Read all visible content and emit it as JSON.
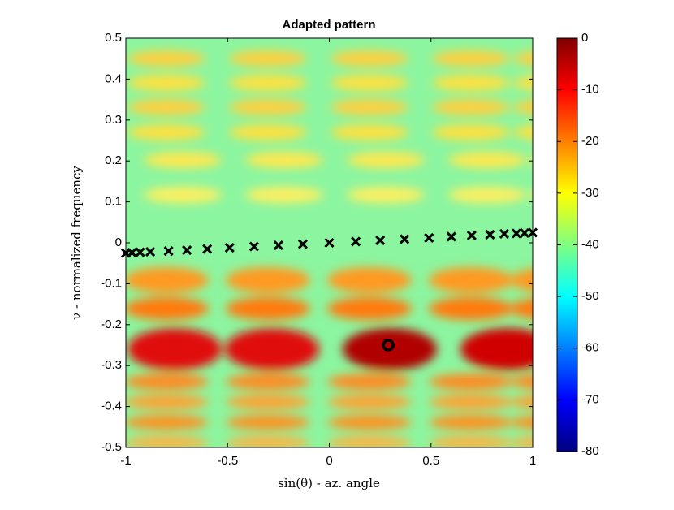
{
  "chart_data": {
    "type": "scatter",
    "title": "Adapted pattern",
    "xlabel": "sin(θ) - az. angle",
    "ylabel": "ν - normalized frequency",
    "xlim": [
      -1,
      1
    ],
    "ylim": [
      -0.5,
      0.5
    ],
    "xticks": [
      -1,
      -0.5,
      0,
      0.5,
      1
    ],
    "yticks": [
      -0.5,
      -0.4,
      -0.3,
      -0.2,
      -0.1,
      0,
      0.1,
      0.2,
      0.3,
      0.4,
      0.5
    ],
    "series": [
      {
        "marker": "x",
        "color": "#000000",
        "x": [
          -1,
          -0.97,
          -0.93,
          -0.88,
          -0.79,
          -0.7,
          -0.6,
          -0.49,
          -0.37,
          -0.25,
          -0.13,
          0,
          0.13,
          0.25,
          0.37,
          0.49,
          0.6,
          0.7,
          0.79,
          0.86,
          0.92,
          0.96,
          1
        ],
        "values": [
          -0.025,
          -0.024,
          -0.023,
          -0.022,
          -0.02,
          -0.018,
          -0.015,
          -0.012,
          -0.009,
          -0.006,
          -0.003,
          0,
          0.003,
          0.006,
          0.009,
          0.012,
          0.015,
          0.018,
          0.02,
          0.022,
          0.023,
          0.024,
          0.025
        ]
      },
      {
        "marker": "o",
        "color": "#000000",
        "x": [
          0.29
        ],
        "values": [
          -0.25
        ]
      }
    ],
    "colorbar": {
      "lim": [
        -80,
        0
      ],
      "ticks": [
        0,
        -10,
        -20,
        -30,
        -40,
        -50,
        -60,
        -70,
        -80
      ]
    }
  }
}
